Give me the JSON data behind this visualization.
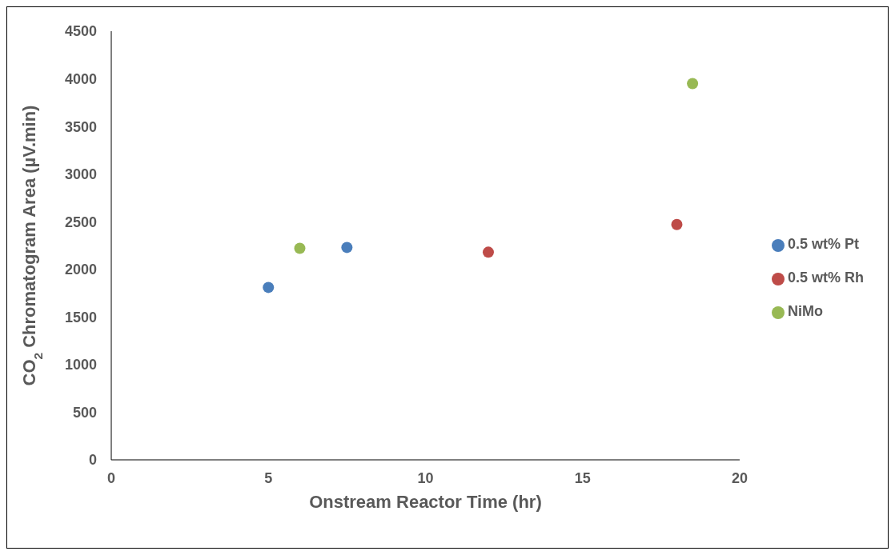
{
  "chart_data": {
    "type": "scatter",
    "xlabel": "Onstream Reactor Time (hr)",
    "ylabel": "CO$_{2}$ Chromatogram Area (µV.min)",
    "xlim": [
      0,
      20
    ],
    "xticks": [
      0,
      5,
      10,
      15,
      20
    ],
    "ylim": [
      0,
      4500
    ],
    "yticks": [
      0,
      500,
      1000,
      1500,
      2000,
      2500,
      3000,
      3500,
      4000,
      4500
    ],
    "grid": false,
    "legend": "right",
    "marker": "circle",
    "series": [
      {
        "name": "0.5 wt% Pt",
        "color": "#4a7ebb",
        "x": [
          5,
          7.5
        ],
        "values": [
          1810,
          2230
        ]
      },
      {
        "name": "0.5 wt% Rh",
        "color": "#be4b48",
        "x": [
          12,
          18
        ],
        "values": [
          2180,
          2470
        ]
      },
      {
        "name": "NiMo",
        "color": "#98b954",
        "x": [
          6,
          18.5
        ],
        "values": [
          2220,
          3950
        ]
      }
    ]
  }
}
